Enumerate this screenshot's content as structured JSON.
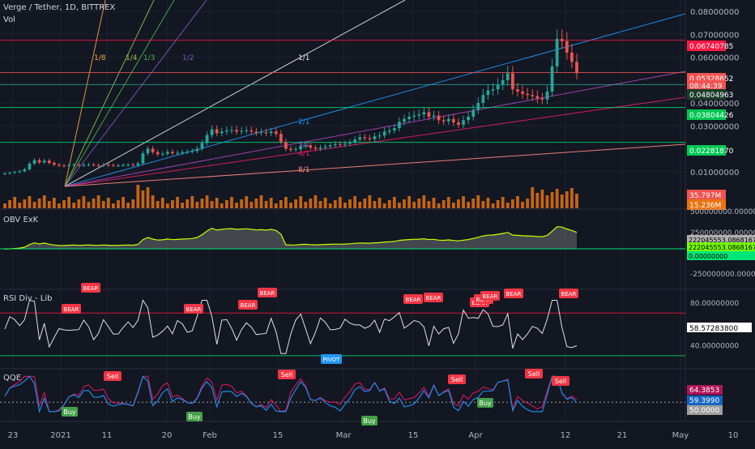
{
  "header": {
    "symbol": "Verge / Tether, 1D, BITTREX",
    "volume_label": "Vol"
  },
  "panes": {
    "obv_title": "OBV ExK",
    "rsi_title": "RSI Div - Lib",
    "qqe_title": "QQE"
  },
  "colors": {
    "background": "#131722",
    "grid": "#1f2430",
    "up": "#26a69a",
    "down": "#ef5350",
    "volume": "#e8730f",
    "red_line": "#ff1744",
    "green_line": "#00e676"
  },
  "fan_labels": [
    {
      "text": "1/8",
      "color": "#f2a640"
    },
    {
      "text": "1/4",
      "color": "#8bc34a"
    },
    {
      "text": "1/3",
      "color": "#4caf50"
    },
    {
      "text": "1/2",
      "color": "#7e57c2"
    },
    {
      "text": "1/1",
      "color": "#e0e0e0"
    },
    {
      "text": "2/1",
      "color": "#2196f3"
    },
    {
      "text": "3/1",
      "color": "#ab47bc"
    },
    {
      "text": "4/1",
      "color": "#e91e63"
    },
    {
      "text": "8/1",
      "color": "#ff8a80"
    }
  ],
  "chart_data": [
    {
      "type": "candlestick",
      "title": "Verge / Tether, 1D, BITTREX",
      "x_tick_labels": [
        "23",
        "2021",
        "11",
        "20",
        "Feb",
        "15",
        "Mar",
        "15",
        "Apr",
        "12",
        "21",
        "May",
        "10"
      ],
      "y_tick_labels": [
        "0.08000000",
        "0.07000000",
        "0.06000000",
        "0.04000000",
        "0.03000000",
        "0.01000000"
      ],
      "ylim": [
        0.0,
        0.085
      ],
      "price_markers": [
        {
          "value": "0.06740785",
          "color": "#ff1744"
        },
        {
          "value": "0.05328652",
          "color": "#ef5350"
        },
        {
          "value": "08:44:39",
          "color": "#ef5350"
        },
        {
          "value": "0.04804963",
          "color": "#1b3d2a"
        },
        {
          "value": "0.03804426",
          "color": "#00c853"
        },
        {
          "value": "0.02281870",
          "color": "#00c853"
        },
        {
          "value": "35.797M",
          "color": "#ef5350"
        },
        {
          "value": "15.236M",
          "color": "#e8730f"
        }
      ],
      "close_series_approx": [
        0.0092,
        0.0095,
        0.0098,
        0.0102,
        0.011,
        0.0135,
        0.015,
        0.014,
        0.0148,
        0.0138,
        0.013,
        0.0126,
        0.0125,
        0.0128,
        0.013,
        0.0127,
        0.0129,
        0.0131,
        0.0128,
        0.0127,
        0.013,
        0.0128,
        0.0126,
        0.0127,
        0.0129,
        0.013,
        0.0128,
        0.0136,
        0.018,
        0.02,
        0.0185,
        0.0176,
        0.0178,
        0.0186,
        0.018,
        0.0182,
        0.0185,
        0.0187,
        0.019,
        0.02,
        0.0225,
        0.026,
        0.0285,
        0.0268,
        0.0275,
        0.028,
        0.0282,
        0.0275,
        0.0278,
        0.028,
        0.0275,
        0.027,
        0.0272,
        0.0268,
        0.0275,
        0.0265,
        0.023,
        0.02,
        0.0195,
        0.0198,
        0.021,
        0.0215,
        0.0205,
        0.02,
        0.0205,
        0.021,
        0.0215,
        0.022,
        0.0218,
        0.0222,
        0.0228,
        0.024,
        0.025,
        0.0246,
        0.0242,
        0.0254,
        0.0258,
        0.0275,
        0.028,
        0.029,
        0.0318,
        0.033,
        0.034,
        0.0345,
        0.035,
        0.036,
        0.034,
        0.0345,
        0.0325,
        0.032,
        0.033,
        0.0315,
        0.0305,
        0.0325,
        0.034,
        0.037,
        0.04,
        0.0435,
        0.0455,
        0.046,
        0.048,
        0.05,
        0.053,
        0.046,
        0.045,
        0.044,
        0.0435,
        0.043,
        0.042,
        0.0415,
        0.045,
        0.056,
        0.068,
        0.067,
        0.062,
        0.058,
        0.053
      ]
    },
    {
      "type": "line",
      "title": "OBV ExK",
      "y_tick_labels": [
        "500000000.00000000",
        "250000000.00000000",
        "0.00000000",
        "-250000000.00000000"
      ],
      "markers": [
        {
          "value": "222045553.08681679",
          "color": "#b0b0b0"
        },
        {
          "value": "222045553.08681679",
          "color": "#76ff03"
        },
        {
          "value": "0.00000000",
          "color": "#00e676"
        }
      ]
    },
    {
      "type": "line",
      "title": "RSI Div - Lib",
      "y_tick_labels": [
        "80.00000000",
        "40.00000000"
      ],
      "current_value": "58.57283800",
      "signal_labels": [
        "BEAR",
        "BEAR",
        "BEAR",
        "BEAR",
        "BEAR",
        "BEAR",
        "BEAR",
        "BEAR",
        "BEAR",
        "BEAR",
        "BEAR",
        "BEAR"
      ],
      "pivot_label": "PIVOT"
    },
    {
      "type": "line",
      "title": "QQE",
      "markers": [
        {
          "value": "64.3853",
          "color": "#ad1457"
        },
        {
          "value": "59.3990",
          "color": "#1565c0"
        },
        {
          "value": "50.0000",
          "color": "#9e9e9e"
        }
      ],
      "sell_labels": [
        "Sell",
        "Sell",
        "Sell",
        "Sell",
        "Sell"
      ],
      "buy_labels": [
        "Buy",
        "Buy",
        "Buy",
        "Buy"
      ]
    }
  ]
}
